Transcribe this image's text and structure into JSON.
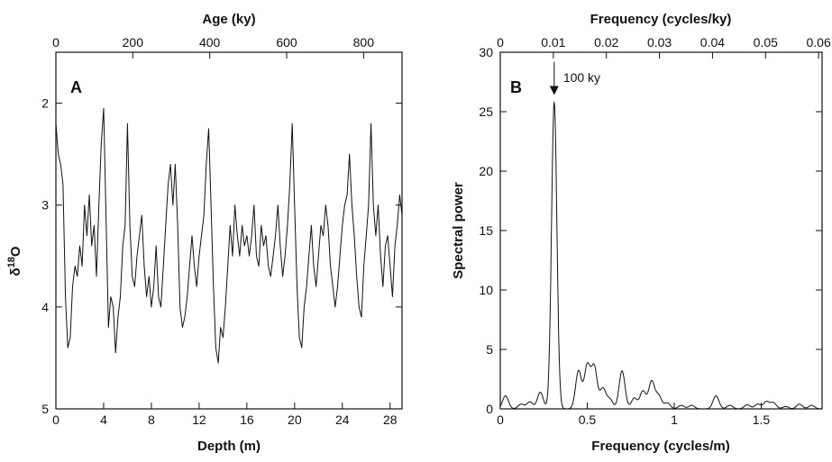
{
  "chart_data": [
    {
      "panel": "A",
      "type": "line",
      "xlabel": "Depth (m)",
      "x2label": "Age (ky)",
      "ylabel_base": "δ",
      "ylabel_sup": "18",
      "ylabel_sub": "O",
      "xlim": [
        0,
        29
      ],
      "x2lim": [
        0,
        900
      ],
      "ylim": [
        5,
        1.5
      ],
      "y_inverted": true,
      "xticks": [
        0,
        4,
        8,
        12,
        16,
        20,
        24,
        28
      ],
      "x2ticks": [
        0,
        200,
        400,
        600,
        800
      ],
      "yticks": [
        2,
        3,
        4,
        5
      ],
      "series": [
        {
          "x": [
            0,
            0.2,
            0.4,
            0.6,
            0.8,
            1.0,
            1.2,
            1.4,
            1.6,
            1.8,
            2.0,
            2.2,
            2.4,
            2.6,
            2.8,
            3.0,
            3.2,
            3.4,
            3.6,
            3.8,
            4.0,
            4.2,
            4.4,
            4.6,
            4.8,
            5.0,
            5.2,
            5.4,
            5.6,
            5.8,
            6.0,
            6.2,
            6.4,
            6.6,
            6.8,
            7.0,
            7.2,
            7.4,
            7.6,
            7.8,
            8.0,
            8.2,
            8.4,
            8.6,
            8.8,
            9.0,
            9.2,
            9.4,
            9.6,
            9.8,
            10.0,
            10.2,
            10.4,
            10.6,
            10.8,
            11.0,
            11.2,
            11.4,
            11.6,
            11.8,
            12.0,
            12.2,
            12.4,
            12.6,
            12.8,
            13.0,
            13.2,
            13.4,
            13.6,
            13.8,
            14.0,
            14.2,
            14.4,
            14.6,
            14.8,
            15.0,
            15.2,
            15.4,
            15.6,
            15.8,
            16.0,
            16.2,
            16.4,
            16.6,
            16.8,
            17.0,
            17.2,
            17.4,
            17.6,
            17.8,
            18.0,
            18.2,
            18.4,
            18.6,
            18.8,
            19.0,
            19.2,
            19.4,
            19.6,
            19.8,
            20.0,
            20.2,
            20.4,
            20.6,
            20.8,
            21.0,
            21.2,
            21.4,
            21.6,
            21.8,
            22.0,
            22.2,
            22.4,
            22.6,
            22.8,
            23.0,
            23.2,
            23.4,
            23.6,
            23.8,
            24.0,
            24.2,
            24.4,
            24.6,
            24.8,
            25.0,
            25.2,
            25.4,
            25.6,
            25.8,
            26.0,
            26.2,
            26.4,
            26.6,
            26.8,
            27.0,
            27.2,
            27.4,
            27.6,
            27.8,
            28.0,
            28.2,
            28.4,
            28.6,
            28.8,
            29.0
          ],
          "y": [
            2.2,
            2.5,
            2.6,
            2.8,
            3.9,
            4.4,
            4.3,
            3.8,
            3.6,
            3.7,
            3.4,
            3.6,
            3.0,
            3.3,
            2.9,
            3.4,
            3.2,
            3.7,
            3.0,
            2.4,
            2.05,
            3.1,
            4.2,
            3.9,
            4.0,
            4.45,
            4.1,
            3.9,
            3.4,
            3.2,
            2.2,
            3.2,
            3.7,
            3.8,
            3.5,
            3.3,
            3.1,
            3.6,
            3.9,
            3.7,
            4.0,
            3.8,
            3.4,
            3.9,
            4.0,
            3.6,
            3.2,
            2.8,
            2.6,
            3.0,
            2.6,
            3.2,
            4.0,
            4.2,
            4.1,
            3.9,
            3.6,
            3.3,
            3.6,
            3.8,
            3.5,
            3.3,
            3.1,
            2.6,
            2.25,
            3.0,
            3.8,
            4.4,
            4.55,
            4.2,
            4.3,
            4.0,
            3.6,
            3.2,
            3.5,
            3.0,
            3.3,
            3.5,
            3.2,
            3.4,
            3.3,
            3.5,
            3.3,
            3.0,
            3.5,
            3.6,
            3.2,
            3.4,
            3.3,
            3.6,
            3.7,
            3.5,
            3.3,
            3.0,
            3.4,
            3.7,
            3.5,
            3.2,
            2.8,
            2.2,
            3.0,
            3.8,
            4.3,
            4.4,
            4.0,
            3.8,
            3.5,
            3.2,
            3.6,
            3.8,
            3.5,
            3.2,
            3.3,
            3.0,
            3.2,
            3.6,
            3.8,
            4.0,
            3.8,
            3.5,
            3.2,
            3.0,
            2.9,
            2.5,
            3.0,
            3.3,
            3.7,
            4.0,
            4.1,
            3.6,
            3.3,
            3.0,
            2.2,
            3.0,
            3.3,
            3.0,
            3.5,
            3.8,
            3.4,
            3.3,
            3.6,
            3.9,
            3.4,
            3.2,
            2.9,
            3.1
          ]
        }
      ]
    },
    {
      "panel": "B",
      "type": "line",
      "xlabel": "Frequency (cycles/m)",
      "x2label": "Frequency (cycles/ky)",
      "ylabel": "Spectral power",
      "xlim": [
        0,
        1.85
      ],
      "x2lim": [
        0,
        0.06
      ],
      "ylim": [
        0,
        30
      ],
      "xticks": [
        0,
        0.5,
        1,
        1.5
      ],
      "xtick_labels": [
        "0",
        "0.5",
        "1",
        "1.5"
      ],
      "x2ticks": [
        0,
        0.01,
        0.02,
        0.03,
        0.04,
        0.05,
        0.06
      ],
      "x2tick_labels": [
        "0",
        "0.01",
        "0.02",
        "0.03",
        "0.04",
        "0.05",
        "0.06"
      ],
      "yticks": [
        0,
        5,
        10,
        15,
        20,
        25,
        30
      ],
      "annotation": {
        "text": "100 ky",
        "x": 0.31,
        "y": 26
      },
      "peaks": [
        {
          "x": 0.03,
          "h": 1.1
        },
        {
          "x": 0.12,
          "h": 0.4
        },
        {
          "x": 0.17,
          "h": 0.6
        },
        {
          "x": 0.23,
          "h": 1.4
        },
        {
          "x": 0.31,
          "h": 25.8
        },
        {
          "x": 0.45,
          "h": 3.2
        },
        {
          "x": 0.5,
          "h": 3.6
        },
        {
          "x": 0.54,
          "h": 3.5
        },
        {
          "x": 0.59,
          "h": 1.7
        },
        {
          "x": 0.63,
          "h": 0.8
        },
        {
          "x": 0.7,
          "h": 3.2
        },
        {
          "x": 0.77,
          "h": 0.9
        },
        {
          "x": 0.82,
          "h": 1.5
        },
        {
          "x": 0.87,
          "h": 2.3
        },
        {
          "x": 0.91,
          "h": 1.1
        },
        {
          "x": 0.96,
          "h": 0.5
        },
        {
          "x": 1.04,
          "h": 0.3
        },
        {
          "x": 1.1,
          "h": 0.3
        },
        {
          "x": 1.24,
          "h": 1.1
        },
        {
          "x": 1.32,
          "h": 0.3
        },
        {
          "x": 1.42,
          "h": 0.35
        },
        {
          "x": 1.48,
          "h": 0.4
        },
        {
          "x": 1.53,
          "h": 0.6
        },
        {
          "x": 1.57,
          "h": 0.5
        },
        {
          "x": 1.64,
          "h": 0.2
        },
        {
          "x": 1.72,
          "h": 0.4
        },
        {
          "x": 1.79,
          "h": 0.3
        }
      ],
      "peak_sigma": 0.017
    }
  ]
}
